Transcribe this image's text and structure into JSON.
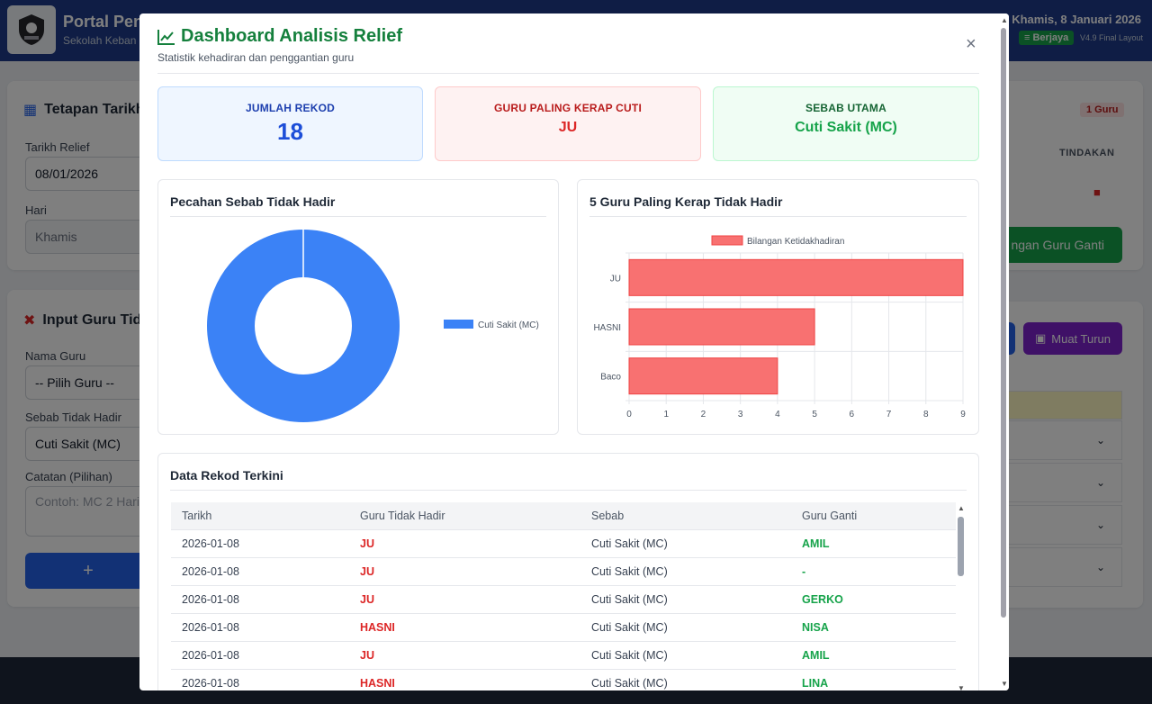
{
  "header": {
    "portal_title": "Portal Pen",
    "portal_subtitle": "Sekolah Keban",
    "date": "Khamis, 8 Januari 2026",
    "status": "Berjaya",
    "version": "V4.9 Final Layout"
  },
  "left_panel": {
    "date_card_title": "Tetapan Tarikh",
    "date_label": "Tarikh Relief",
    "date_value": "08/01/2026",
    "day_label": "Hari",
    "day_value": "Khamis",
    "input_card_title": "Input Guru Tid",
    "teacher_label": "Nama Guru",
    "teacher_value": "-- Pilih Guru --",
    "reason_label": "Sebab Tidak Hadir",
    "reason_value": "Cuti Sakit (MC)",
    "notes_label": "Catatan (Pilihan)",
    "notes_placeholder": "Contoh: MC 2 Hari",
    "add_button": "+"
  },
  "right_panel": {
    "guru_count": "1 Guru",
    "column_action": "TINDAKAN",
    "assign_button": "ngan Guru Ganti",
    "download_button": "Muat Turun"
  },
  "modal": {
    "title": "Dashboard Analisis Relief",
    "subtitle": "Statistik kehadiran dan penggantian guru",
    "close": "×",
    "stats": {
      "total_label": "JUMLAH REKOD",
      "total_value": "18",
      "frequent_label": "GURU PALING KERAP CUTI",
      "frequent_value": "JU",
      "reason_label": "SEBAB UTAMA",
      "reason_value": "Cuti Sakit (MC)"
    },
    "pie_panel_title": "Pecahan Sebab Tidak Hadir",
    "bar_panel_title": "5 Guru Paling Kerap Tidak Hadir",
    "table_title": "Data Rekod Terkini",
    "table": {
      "headers": [
        "Tarikh",
        "Guru Tidak Hadir",
        "Sebab",
        "Guru Ganti"
      ],
      "rows": [
        [
          "2026-01-08",
          "JU",
          "Cuti Sakit (MC)",
          "AMIL"
        ],
        [
          "2026-01-08",
          "JU",
          "Cuti Sakit (MC)",
          "-"
        ],
        [
          "2026-01-08",
          "JU",
          "Cuti Sakit (MC)",
          "GERKO"
        ],
        [
          "2026-01-08",
          "HASNI",
          "Cuti Sakit (MC)",
          "NISA"
        ],
        [
          "2026-01-08",
          "JU",
          "Cuti Sakit (MC)",
          "AMIL"
        ],
        [
          "2026-01-08",
          "HASNI",
          "Cuti Sakit (MC)",
          "LINA"
        ]
      ]
    }
  },
  "chart_data": [
    {
      "type": "pie",
      "title": "Pecahan Sebab Tidak Hadir",
      "style": "doughnut",
      "categories": [
        "Cuti Sakit (MC)"
      ],
      "values": [
        18
      ],
      "colors": [
        "#3b82f6"
      ],
      "legend": "right"
    },
    {
      "type": "bar",
      "orientation": "horizontal",
      "title": "5 Guru Paling Kerap Tidak Hadir",
      "categories": [
        "JU",
        "HASNI",
        "Baco"
      ],
      "series": [
        {
          "name": "Bilangan Ketidakhadiran",
          "values": [
            9,
            5,
            4
          ]
        }
      ],
      "color": "#f87171",
      "xlim": [
        0,
        9
      ],
      "xticks": [
        "0",
        "1",
        "2",
        "3",
        "4",
        "5",
        "6",
        "7",
        "8",
        "9"
      ],
      "legend": "top-center",
      "grid": true
    }
  ]
}
